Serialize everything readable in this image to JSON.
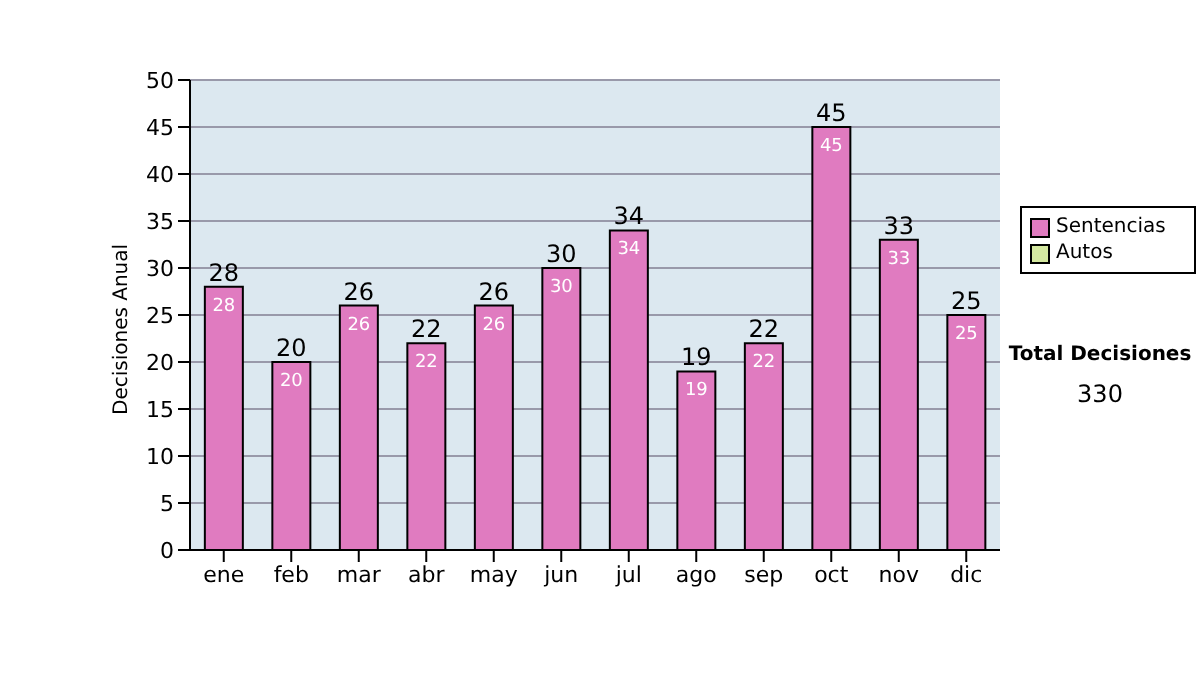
{
  "chart_data": {
    "type": "bar",
    "ylabel": "Decisiones Anual",
    "categories": [
      "ene",
      "feb",
      "mar",
      "abr",
      "may",
      "jun",
      "jul",
      "ago",
      "sep",
      "oct",
      "nov",
      "dic"
    ],
    "series": [
      {
        "name": "Sentencias",
        "color": "#e07bc0",
        "values": [
          28,
          20,
          26,
          22,
          26,
          30,
          34,
          19,
          22,
          45,
          33,
          25
        ],
        "value_labels": [
          "28",
          "20",
          "26",
          "22",
          "26",
          "30",
          "34",
          "19",
          "22",
          "45",
          "33",
          "25"
        ]
      },
      {
        "name": "Autos",
        "color": "#d4e8a0",
        "values": [
          0,
          0,
          0,
          0,
          0,
          0,
          0,
          0,
          0,
          0,
          0,
          0
        ]
      }
    ],
    "stacked": true,
    "totals": [
      "28",
      "20",
      "26",
      "22",
      "26",
      "30",
      "34",
      "19",
      "22",
      "45",
      "33",
      "25"
    ],
    "ylim": [
      0,
      50
    ],
    "yticks": [
      0,
      5,
      10,
      15,
      20,
      25,
      30,
      35,
      40,
      45,
      50
    ],
    "grid": "y",
    "legend": "right",
    "annotations": [
      "Total Decisiones",
      "330"
    ]
  }
}
